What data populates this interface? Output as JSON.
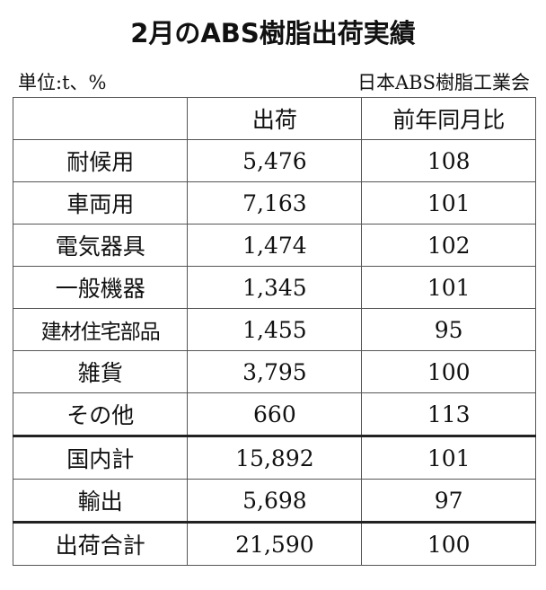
{
  "title": "2月のABS樹脂出荷実績",
  "unit": "単位:t、%",
  "source": "日本ABS樹脂工業会",
  "table": {
    "headers": [
      "",
      "出荷",
      "前年同月比"
    ],
    "rows": [
      {
        "label": "耐候用",
        "shipment": "5,476",
        "yoy": "108"
      },
      {
        "label": "車両用",
        "shipment": "7,163",
        "yoy": "101"
      },
      {
        "label": "電気器具",
        "shipment": "1,474",
        "yoy": "102"
      },
      {
        "label": "一般機器",
        "shipment": "1,345",
        "yoy": "101"
      },
      {
        "label": "建材住宅部品",
        "shipment": "1,455",
        "yoy": "95"
      },
      {
        "label": "雑貨",
        "shipment": "3,795",
        "yoy": "100"
      },
      {
        "label": "その他",
        "shipment": "660",
        "yoy": "113"
      },
      {
        "label": "国内計",
        "shipment": "15,892",
        "yoy": "101"
      },
      {
        "label": "輸出",
        "shipment": "5,698",
        "yoy": "97"
      },
      {
        "label": "出荷合計",
        "shipment": "21,590",
        "yoy": "100"
      }
    ]
  }
}
